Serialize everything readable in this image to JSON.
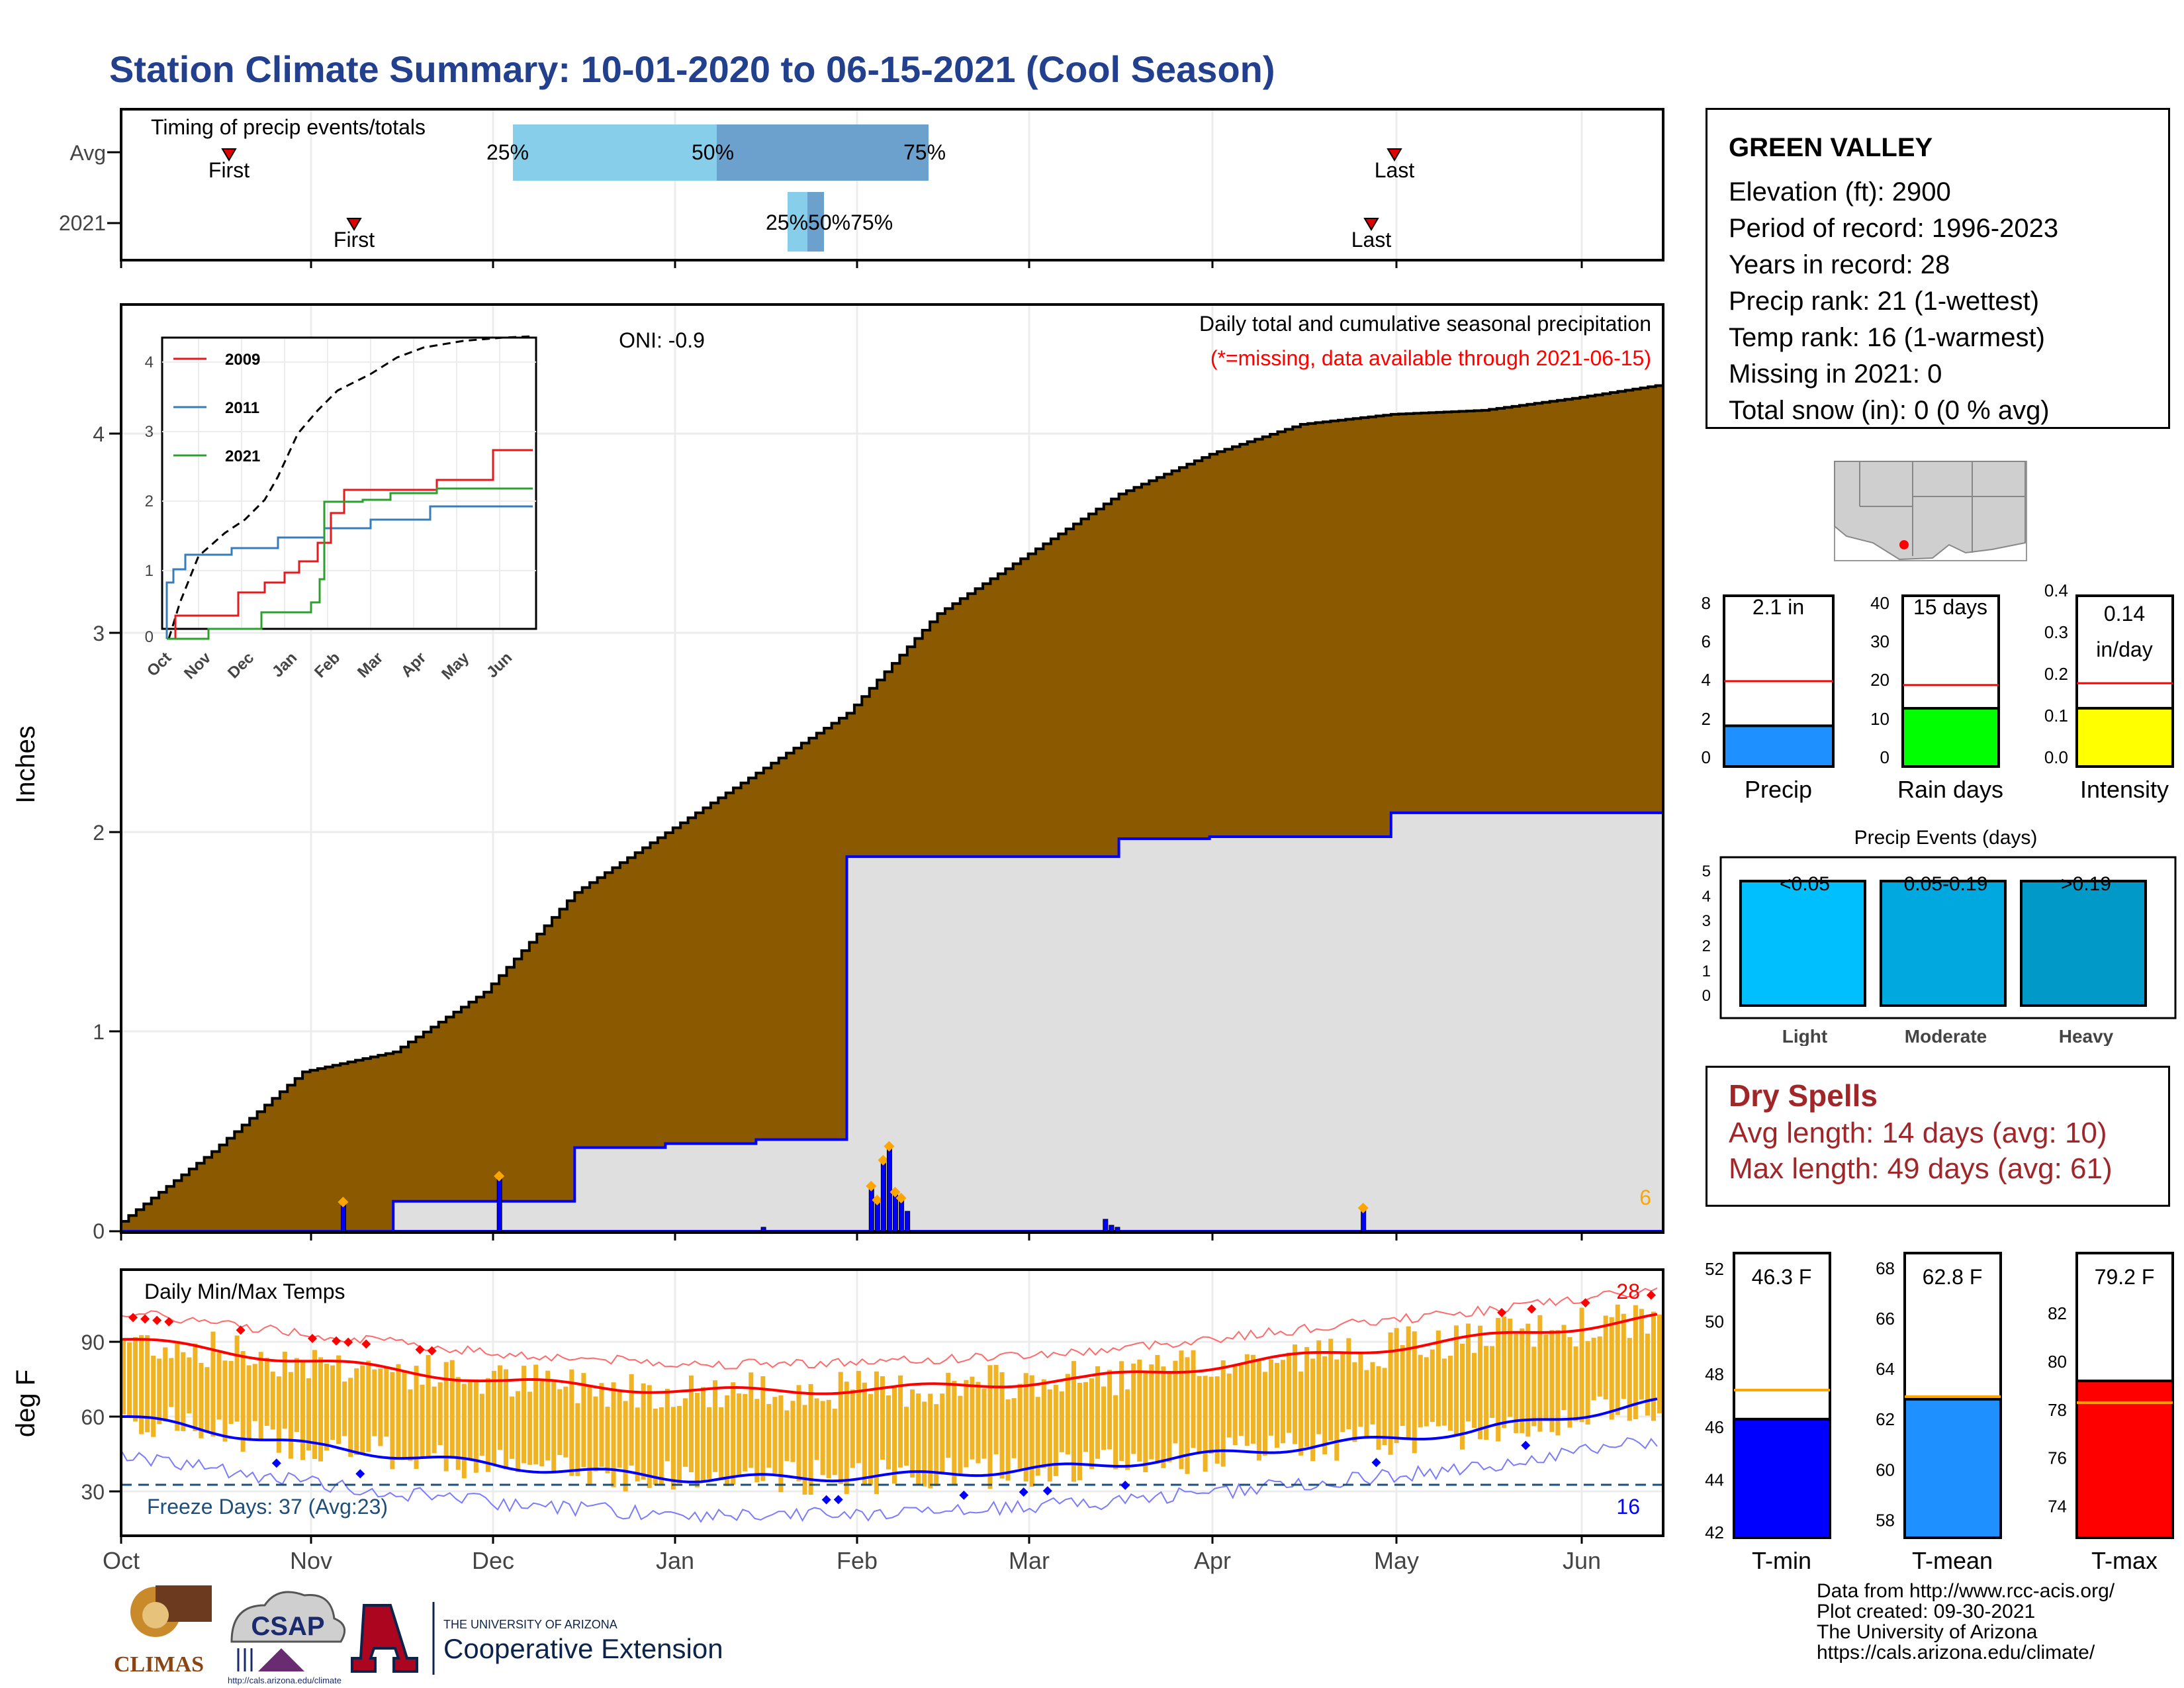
{
  "title": "Station Climate Summary: 10-01-2020 to 06-15-2021 (Cool Season)",
  "timing": {
    "label": "Timing of precip events/totals",
    "rows": [
      "Avg",
      "2021"
    ],
    "avg": {
      "first": "First",
      "last": "Last",
      "p25": "25%",
      "p50": "50%",
      "p75": "75%"
    },
    "y2021": {
      "first": "First",
      "last": "Last",
      "pct_text": "25%50%75%"
    },
    "month_ticks": [
      "Oct",
      "Nov",
      "Dec",
      "Jan",
      "Feb",
      "Mar",
      "Apr",
      "May",
      "Jun"
    ]
  },
  "precip_panel": {
    "ylabel": "Inches",
    "yticks": [
      "0",
      "1",
      "2",
      "3",
      "4"
    ],
    "oni": "ONI: -0.9",
    "heading": "Daily total and cumulative seasonal precipitation",
    "missing_note": "(*=missing, data available through 2021-06-15)",
    "event_count": "6"
  },
  "inset": {
    "legend": [
      "2009",
      "2011",
      "2021"
    ],
    "legend_colors": [
      "#e41a1c",
      "#377eb8",
      "#2ca02c"
    ],
    "yticks": [
      "0",
      "1",
      "2",
      "3",
      "4"
    ],
    "xticks": [
      "Oct",
      "Nov",
      "Dec",
      "Jan",
      "Feb",
      "Mar",
      "Apr",
      "May",
      "Jun"
    ]
  },
  "temp_panel": {
    "ylabel": "deg F",
    "title": "Daily Min/Max Temps",
    "yticks": [
      "30",
      "60",
      "90"
    ],
    "freeze": "Freeze Days: 37 (Avg:23)",
    "hot_count": "28",
    "cold_count": "16",
    "xticks": [
      "Oct",
      "Nov",
      "Dec",
      "Jan",
      "Feb",
      "Mar",
      "Apr",
      "May",
      "Jun"
    ]
  },
  "station": {
    "name": "GREEN VALLEY",
    "elevation": "Elevation (ft): 2900",
    "period": "Period of record: 1996-2023",
    "years": "Years in record: 28",
    "precip_rank": "Precip rank: 21 (1-wettest)",
    "temp_rank": "Temp rank: 16 (1-warmest)",
    "missing": "Missing in 2021: 0",
    "snow": "Total snow (in): 0 (0 % avg)"
  },
  "mini_bars": {
    "precip": {
      "label": "Precip",
      "value_label": "2.1 in",
      "yticks": [
        "0",
        "2",
        "4",
        "6",
        "8"
      ]
    },
    "rain_days": {
      "label": "Rain days",
      "value_label": "15 days",
      "yticks": [
        "0",
        "10",
        "20",
        "30",
        "40"
      ]
    },
    "intensity": {
      "label": "Intensity",
      "value_label_1": "0.14",
      "value_label_2": "in/day",
      "yticks": [
        "0.0",
        "0.1",
        "0.2",
        "0.3",
        "0.4"
      ]
    }
  },
  "events": {
    "title": "Precip Events (days)",
    "yticks": [
      "0",
      "1",
      "2",
      "3",
      "4",
      "5"
    ],
    "bars": [
      {
        "range": "<0.05",
        "label": "Light",
        "color": "#00bfff"
      },
      {
        "range": "0.05-0.19",
        "label": "Moderate",
        "color": "#00a8e0"
      },
      {
        "range": ">0.19",
        "label": "Heavy",
        "color": "#0099c8"
      }
    ]
  },
  "dry_spells": {
    "title": "Dry Spells",
    "avg_length": "Avg length: 14 days (avg: 10)",
    "max_length": "Max length: 49 days (avg: 61)"
  },
  "temp_bars": {
    "tmin": {
      "label": "T-min",
      "value_label": "46.3 F",
      "yticks": [
        "42",
        "44",
        "46",
        "48",
        "50",
        "52"
      ]
    },
    "tmean": {
      "label": "T-mean",
      "value_label": "62.8 F",
      "yticks": [
        "58",
        "60",
        "62",
        "64",
        "66",
        "68"
      ]
    },
    "tmax": {
      "label": "T-max",
      "value_label": "79.2 F",
      "yticks": [
        "74",
        "76",
        "78",
        "80",
        "82"
      ]
    }
  },
  "credits": [
    "Data from http://www.rcc-acis.org/",
    "Plot created: 09-30-2021",
    "The University of Arizona",
    "https://cals.arizona.edu/climate/"
  ],
  "logos": {
    "climas": "CLIMAS",
    "csap": "CSAP",
    "csap_url": "http://cals.arizona.edu/climate",
    "ua_top": "THE UNIVERSITY OF ARIZONA",
    "ua_bottom": "Cooperative Extension"
  },
  "chart_data": [
    {
      "type": "area",
      "title": "Daily total and cumulative seasonal precipitation",
      "ylabel": "Inches",
      "ylim": [
        0,
        4.6
      ],
      "x": [
        "10-01",
        "10-15",
        "11-01",
        "11-15",
        "12-01",
        "12-15",
        "01-01",
        "01-15",
        "02-01",
        "02-15",
        "03-01",
        "03-15",
        "04-01",
        "04-15",
        "05-01",
        "05-15",
        "06-01",
        "06-15"
      ],
      "series": [
        {
          "name": "Avg cumulative",
          "color": "#8b5a00",
          "values": [
            0.05,
            0.4,
            0.8,
            0.9,
            1.2,
            1.7,
            2.0,
            2.3,
            2.6,
            3.1,
            3.4,
            3.7,
            3.9,
            4.05,
            4.1,
            4.12,
            4.18,
            4.25
          ]
        },
        {
          "name": "2021 cumulative",
          "color": "#0000ff",
          "values": [
            0.0,
            0.0,
            0.0,
            0.15,
            0.15,
            0.42,
            0.44,
            0.46,
            1.88,
            1.88,
            1.88,
            1.97,
            1.98,
            1.98,
            2.1,
            2.1,
            2.1,
            2.1
          ]
        }
      ]
    },
    {
      "type": "line",
      "title": "",
      "ylim": [
        0,
        4.5
      ],
      "series": [
        {
          "name": "2009",
          "color": "#e41a1c",
          "values": [
            0,
            0.3,
            0.3,
            0.7,
            1.0,
            1.7,
            2.2,
            2.3,
            2.5,
            2.5,
            3.1,
            3.3
          ]
        },
        {
          "name": "2011",
          "color": "#377eb8",
          "values": [
            0.8,
            0.9,
            0.9,
            1.3,
            1.3,
            1.6,
            1.6,
            1.6,
            1.8,
            1.8,
            1.8,
            1.8
          ]
        },
        {
          "name": "2021",
          "color": "#2ca02c",
          "values": [
            0,
            0,
            0.15,
            0.4,
            0.45,
            1.9,
            1.9,
            2.0,
            2.0,
            2.1,
            2.1,
            2.1
          ]
        },
        {
          "name": "avg",
          "color": "#000000",
          "values": [
            0.05,
            0.8,
            1.2,
            2.0,
            2.6,
            3.4,
            3.7,
            4.0,
            4.1,
            4.2,
            4.25,
            4.3
          ]
        }
      ]
    },
    {
      "type": "bar",
      "title": "Daily Min/Max Temps",
      "ylabel": "deg F",
      "ylim": [
        15,
        112
      ],
      "x": [
        "Oct",
        "Nov",
        "Dec",
        "Jan",
        "Feb",
        "Mar",
        "Apr",
        "May",
        "Jun"
      ],
      "series": [
        {
          "name": "Avg max",
          "color": "#ff0000",
          "values": [
            91,
            82,
            74,
            70,
            71,
            75,
            83,
            91,
            100
          ]
        },
        {
          "name": "Avg min",
          "color": "#0000ff",
          "values": [
            60,
            48,
            40,
            35,
            36,
            40,
            47,
            54,
            66
          ]
        }
      ]
    },
    {
      "type": "bar",
      "categories": [
        "Precip",
        "Rain days",
        "Intensity"
      ],
      "values": [
        2.1,
        15,
        0.14
      ],
      "averages": [
        4.4,
        21,
        0.2
      ]
    },
    {
      "type": "bar",
      "title": "Precip Events (days)",
      "categories": [
        "Light",
        "Moderate",
        "Heavy"
      ],
      "values": [
        5,
        5,
        5
      ]
    },
    {
      "type": "bar",
      "categories": [
        "T-min",
        "T-mean",
        "T-max"
      ],
      "values": [
        46.3,
        62.8,
        79.2
      ],
      "averages": [
        47.4,
        62.9,
        78.3
      ]
    }
  ]
}
